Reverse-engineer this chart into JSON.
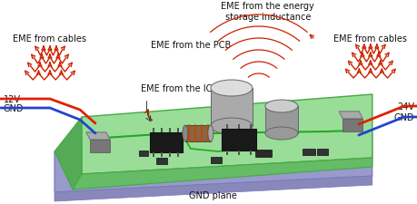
{
  "bg_color": "#ffffff",
  "labels": {
    "eme_cables_left": "EME from cables",
    "eme_pcb": "EME from the PCB",
    "eme_inductance": "EME from the energy\nstorage inductance",
    "eme_ic": "EME from the IC",
    "eme_cables_right": "EME from cables",
    "voltage_12v": "12V",
    "gnd_left": "GND",
    "voltage_24v": "24V",
    "gnd_right": "GND",
    "gnd_plane": "GND plane"
  },
  "label_fontsize": 7.0,
  "pcb_color": "#88cc88",
  "pcb_top_color": "#99dd99",
  "pcb_left_color": "#55aa55",
  "pcb_front_color": "#66bb66",
  "gnd_plane_color": "#9999cc",
  "gnd_plane_front": "#8888bb",
  "eme_color": "#cc2200",
  "cable_red": "#dd2200",
  "cable_blue": "#2244cc",
  "connector_color": "#aaaaaa",
  "connector_dark": "#888888",
  "ic_color": "#1a1a1a",
  "inductor_body": "#aaaaaa",
  "inductor_top": "#cccccc",
  "smd_color": "#333333"
}
